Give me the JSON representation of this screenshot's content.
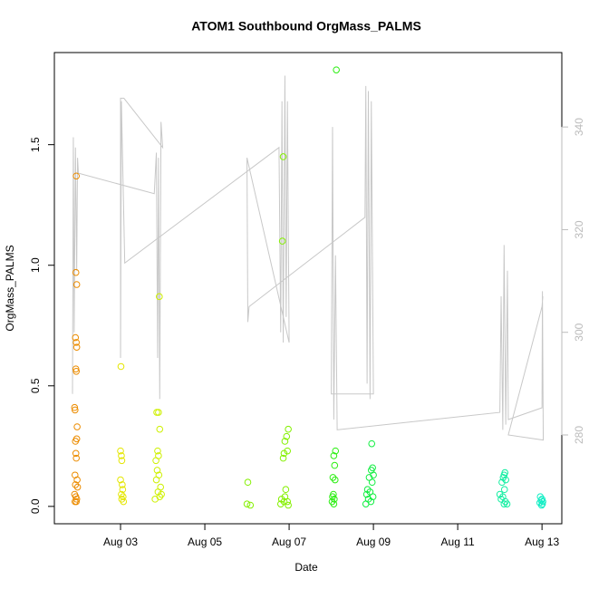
{
  "chart_data": {
    "type": "scatter",
    "title": "ATOM1 Southbound OrgMass_PALMS",
    "xlabel": "Date",
    "ylabel": "OrgMass_PALMS",
    "xlim": [
      1.43,
      13.47
    ],
    "xticks": [
      {
        "value": 3,
        "label": "Aug 03"
      },
      {
        "value": 5,
        "label": "Aug 05"
      },
      {
        "value": 7,
        "label": "Aug 07"
      },
      {
        "value": 9,
        "label": "Aug 09"
      },
      {
        "value": 11,
        "label": "Aug 11"
      },
      {
        "value": 13,
        "label": "Aug 13"
      }
    ],
    "ylim": [
      -0.072,
      1.882
    ],
    "yticks": [
      {
        "value": 0,
        "label": "0.0"
      },
      0.5,
      {
        "value": 1,
        "label": "1.0"
      },
      1.5
    ],
    "y2lim": [
      262.7,
      354.5
    ],
    "y2ticks": [
      280,
      300,
      320,
      340
    ],
    "grid": false,
    "series": [
      {
        "color": "#ec8c00",
        "x": [
          1.95,
          1.94,
          1.96,
          1.93,
          1.95,
          1.96,
          1.94,
          1.95,
          1.91,
          1.92,
          1.97,
          1.96,
          1.93,
          1.94,
          1.95,
          1.92,
          1.97,
          1.93,
          1.98,
          1.91,
          1.94,
          1.96,
          1.92,
          1.95
        ],
        "values": [
          1.37,
          0.97,
          0.92,
          0.7,
          0.68,
          0.66,
          0.57,
          0.56,
          0.41,
          0.4,
          0.33,
          0.28,
          0.27,
          0.22,
          0.2,
          0.13,
          0.11,
          0.09,
          0.08,
          0.05,
          0.04,
          0.03,
          0.02,
          0.02
        ]
      },
      {
        "color": "#e4e600",
        "x": [
          3.01,
          3.0,
          3.02,
          3.03,
          3.0,
          3.04,
          3.05,
          3.02,
          3.06,
          3.03,
          3.07
        ],
        "values": [
          0.58,
          0.23,
          0.21,
          0.19,
          0.11,
          0.09,
          0.07,
          0.05,
          0.04,
          0.03,
          0.02
        ]
      },
      {
        "color": "#cef000",
        "x": [
          3.92,
          3.86,
          3.9,
          3.93,
          3.88,
          3.9,
          3.84,
          3.87,
          3.91,
          3.85,
          3.95,
          3.89,
          3.97,
          3.93,
          3.82
        ],
        "values": [
          0.87,
          0.39,
          0.39,
          0.32,
          0.23,
          0.21,
          0.19,
          0.15,
          0.13,
          0.11,
          0.08,
          0.06,
          0.05,
          0.04,
          0.03
        ]
      },
      {
        "color": "#84f000",
        "x": [
          6.02,
          6.0,
          6.08,
          6.86,
          6.84,
          6.98,
          6.94,
          6.9,
          6.96,
          6.88,
          6.86,
          6.92,
          6.9,
          6.82,
          6.96,
          6.8,
          6.98,
          6.88
        ],
        "values": [
          0.1,
          0.01,
          0.005,
          1.45,
          1.1,
          0.32,
          0.29,
          0.27,
          0.23,
          0.22,
          0.2,
          0.07,
          0.04,
          0.03,
          0.02,
          0.01,
          0.005,
          0.02
        ]
      },
      {
        "color": "#2aee10",
        "x": [
          8.12,
          8.1,
          8.06,
          8.08,
          8.04,
          8.09,
          8.05,
          8.03,
          8.07,
          8.02,
          8.06
        ],
        "values": [
          1.81,
          0.23,
          0.21,
          0.17,
          0.12,
          0.11,
          0.05,
          0.04,
          0.03,
          0.02,
          0.01
        ]
      },
      {
        "color": "#10ee40",
        "x": [
          8.96,
          8.98,
          8.95,
          9.0,
          8.9,
          8.97,
          8.86,
          8.92,
          8.84,
          8.99,
          8.88,
          8.94,
          8.82
        ],
        "values": [
          0.26,
          0.16,
          0.15,
          0.13,
          0.12,
          0.1,
          0.07,
          0.06,
          0.05,
          0.04,
          0.03,
          0.02,
          0.01
        ]
      },
      {
        "color": "#10eea0",
        "x": [
          12.12,
          12.1,
          12.08,
          12.14,
          12.05,
          12.11,
          12.0,
          12.07,
          12.03,
          12.13,
          12.1,
          12.17
        ],
        "values": [
          0.14,
          0.13,
          0.12,
          0.11,
          0.1,
          0.07,
          0.05,
          0.04,
          0.03,
          0.02,
          0.01,
          0.01
        ]
      },
      {
        "color": "#10eec4",
        "x": [
          12.96,
          13.0,
          12.98,
          13.02,
          12.95,
          13.01,
          12.99
        ],
        "values": [
          0.04,
          0.03,
          0.025,
          0.02,
          0.015,
          0.01,
          0.005
        ]
      },
      {
        "color": "#c8c8c8",
        "axis": "y2",
        "x": [
          1.86,
          1.88,
          1.9,
          1.93,
          1.96,
          1.98,
          2.0,
          3.8,
          3.85,
          3.88,
          3.9,
          3.93,
          3.96,
          4.0,
          3.08,
          3.0,
          3.0,
          3.02,
          3.1,
          6.76,
          6.8,
          6.83,
          6.86,
          6.9,
          6.93,
          6.96,
          7.0,
          6.0,
          6.02,
          6.05,
          8.8,
          8.82,
          8.85,
          8.88,
          8.92,
          8.95,
          9.0,
          8.0,
          8.03,
          8.06,
          8.1,
          8.14,
          12.0,
          12.03,
          12.07,
          12.1,
          12.14,
          12.18,
          12.2,
          13.0,
          13.01,
          13.03,
          12.2,
          13.0,
          13.02
        ],
        "values": [
          288,
          338,
          300,
          336,
          312,
          334,
          331,
          327,
          335,
          295,
          334,
          287,
          341,
          336,
          345.6,
          345.6,
          295,
          345,
          313.5,
          336,
          300,
          345,
          298,
          350,
          303,
          345,
          298,
          334,
          302,
          305,
          322.4,
          348,
          290,
          347,
          287,
          345,
          288,
          288,
          340,
          283,
          315,
          281,
          284.4,
          307,
          281,
          317,
          282,
          312,
          283,
          285.3,
          308,
          279,
          280,
          305,
          307
        ]
      }
    ]
  }
}
